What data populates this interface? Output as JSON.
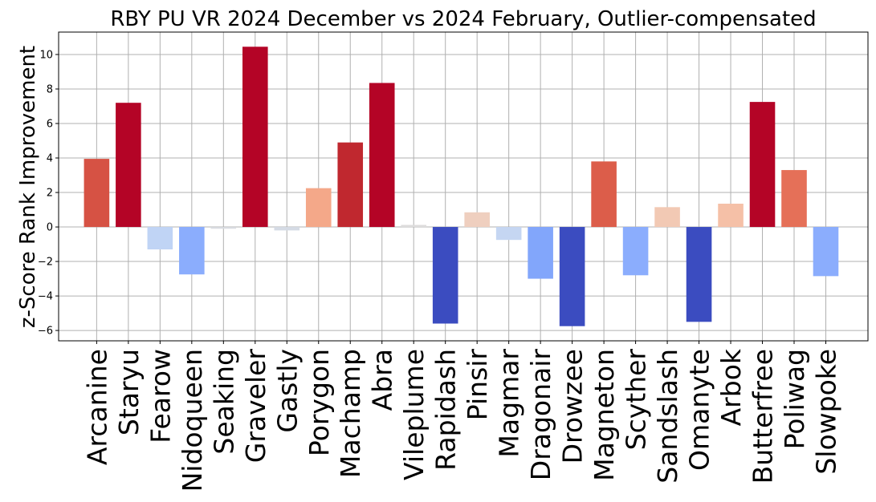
{
  "chart_data": {
    "type": "bar",
    "title": "RBY PU VR 2024 December vs 2024 February, Outlier-compensated",
    "xlabel": "",
    "ylabel": "z-Score Rank Improvement",
    "ylim": [
      -6.6,
      11.3
    ],
    "yticks": [
      -6,
      -4,
      -2,
      0,
      2,
      4,
      6,
      8,
      10
    ],
    "grid": true,
    "colormap": "coolwarm",
    "categories": [
      "Arcanine",
      "Staryu",
      "Fearow",
      "Nidoqueen",
      "Seaking",
      "Graveler",
      "Gastly",
      "Porygon",
      "Machamp",
      "Abra",
      "Vileplume",
      "Rapidash",
      "Pinsir",
      "Magmar",
      "Dragonair",
      "Drowzee",
      "Magneton",
      "Scyther",
      "Sandslash",
      "Omanyte",
      "Arbok",
      "Butterfree",
      "Poliwag",
      "Slowpoke"
    ],
    "values": [
      3.95,
      7.2,
      -1.3,
      -2.75,
      -0.1,
      10.45,
      -0.2,
      2.25,
      4.9,
      8.35,
      0.12,
      -5.6,
      0.85,
      -0.75,
      -3.0,
      -5.75,
      3.8,
      -2.8,
      1.15,
      -5.5,
      1.35,
      7.25,
      3.3,
      -2.85
    ],
    "colors": [
      "#d65244",
      "#b40426",
      "#c0d4f5",
      "#8badfd",
      "#d9dce1",
      "#b40426",
      "#d5dbe5",
      "#f4a889",
      "#c0282f",
      "#b40426",
      "#dddcdc",
      "#3b4cc0",
      "#efcfbf",
      "#c5d6f2",
      "#82a6fb",
      "#3b4cc0",
      "#dc5d4a",
      "#8badfd",
      "#f2c9b4",
      "#3b4cc0",
      "#f5c0a7",
      "#b40426",
      "#e57058",
      "#8badfd"
    ]
  }
}
